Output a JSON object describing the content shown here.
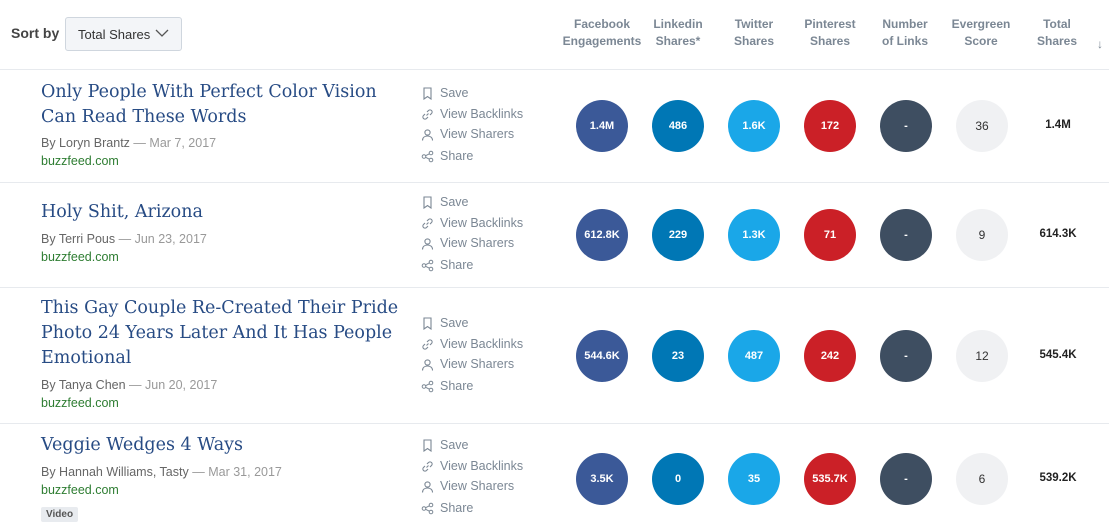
{
  "sort": {
    "label": "Sort by",
    "selected": "Total Shares"
  },
  "columns": [
    {
      "line1": "Facebook",
      "line2": "Engagements"
    },
    {
      "line1": "Linkedin",
      "line2": "Shares*"
    },
    {
      "line1": "Twitter",
      "line2": "Shares"
    },
    {
      "line1": "Pinterest",
      "line2": "Shares"
    },
    {
      "line1": "Number",
      "line2": "of Links"
    },
    {
      "line1": "Evergreen",
      "line2": "Score"
    },
    {
      "line1": "Total",
      "line2": "Shares"
    }
  ],
  "sort_arrow": "↓",
  "actions": {
    "save": "Save",
    "backlinks": "View Backlinks",
    "sharers": "View Sharers",
    "share": "Share"
  },
  "colors": {
    "facebook": "#3b5998",
    "linkedin": "#0077b5",
    "twitter": "#1aa7e8",
    "pinterest": "#cb2027",
    "links": "#3e4e61",
    "evergreen": "#f0f1f3"
  },
  "articles": [
    {
      "title_lines": [
        "Only People With Perfect Color Vision",
        "Can Read These Words"
      ],
      "author": "By Loryn Brantz",
      "sep": "—",
      "date": "Mar 7, 2017",
      "domain": "buzzfeed.com",
      "facebook": "1.4M",
      "linkedin": "486",
      "twitter": "1.6K",
      "pinterest": "172",
      "links": "-",
      "evergreen": "36",
      "total": "1.4M"
    },
    {
      "title_lines": [
        "Holy Shit, Arizona"
      ],
      "author": "By Terri Pous",
      "sep": "—",
      "date": "Jun 23, 2017",
      "domain": "buzzfeed.com",
      "facebook": "612.8K",
      "linkedin": "229",
      "twitter": "1.3K",
      "pinterest": "71",
      "links": "-",
      "evergreen": "9",
      "total": "614.3K"
    },
    {
      "title_lines": [
        "This Gay Couple Re-Created Their Pride",
        "Photo 24 Years Later And It Has People",
        "Emotional"
      ],
      "author": "By Tanya Chen",
      "sep": "—",
      "date": "Jun 20, 2017",
      "domain": "buzzfeed.com",
      "facebook": "544.6K",
      "linkedin": "23",
      "twitter": "487",
      "pinterest": "242",
      "links": "-",
      "evergreen": "12",
      "total": "545.4K"
    },
    {
      "title_lines": [
        "Veggie Wedges 4 Ways"
      ],
      "author": "By Hannah Williams, Tasty",
      "sep": "—",
      "date": "Mar 31, 2017",
      "domain": "buzzfeed.com",
      "badge": "Video",
      "facebook": "3.5K",
      "linkedin": "0",
      "twitter": "35",
      "pinterest": "535.7K",
      "links": "-",
      "evergreen": "6",
      "total": "539.2K"
    }
  ]
}
